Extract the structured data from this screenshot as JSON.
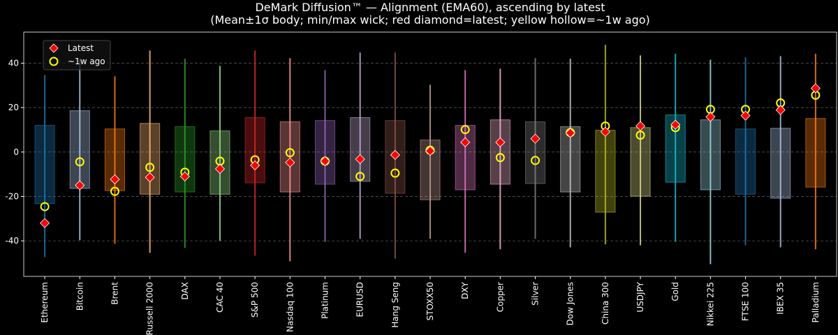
{
  "chart_data": {
    "type": "range-box",
    "title": "DeMark Diffusion™ — Alignment (EMA60), ascending by latest",
    "subtitle": "(Mean±1σ body; min/max wick; red diamond=latest; yellow hollow=~1w ago)",
    "categories": [
      "Ethereum",
      "Bitcoin",
      "Brent",
      "Russell 2000",
      "DAX",
      "CAC 40",
      "S&P 500",
      "Nasdaq 100",
      "Platinum",
      "EURUSD",
      "Hang Seng",
      "STOXX50",
      "DXY",
      "Copper",
      "Silver",
      "Dow Jones",
      "China 300",
      "USDJPY",
      "Gold",
      "Nikkei 225",
      "FTSE 100",
      "IBEX 35",
      "Palladium"
    ],
    "colors": [
      "#1f77b4",
      "#aec7e8",
      "#ff7f0e",
      "#ffbb78",
      "#2ca02c",
      "#98df8a",
      "#d62728",
      "#ff9896",
      "#9467bd",
      "#c5b0d5",
      "#8c564b",
      "#c49c94",
      "#e377c2",
      "#f7b6d2",
      "#7f7f7f",
      "#c7c7c7",
      "#bcbd22",
      "#dbdb8d",
      "#17becf",
      "#9edae5",
      "#1f77b4",
      "#aec7e8",
      "#ff7f0e"
    ],
    "body_low": [
      -23.3,
      -16.4,
      -17.4,
      -19,
      -18,
      -19,
      -13.9,
      -18,
      -14.5,
      -13.2,
      -18.6,
      -21.5,
      -17,
      -14.5,
      -14.2,
      -18,
      -27.1,
      -19.9,
      -13.6,
      -17,
      -19,
      -20.8,
      -15.8
    ],
    "body_high": [
      12,
      18.6,
      10.4,
      12.9,
      11.4,
      9.5,
      15.5,
      13.6,
      14.2,
      15.5,
      14.2,
      5.4,
      12,
      14.5,
      13.6,
      11.4,
      9.8,
      11,
      16.7,
      14.5,
      10.4,
      10.7,
      15.1
    ],
    "wick_min": [
      -47.3,
      -39.7,
      -41.3,
      -45.4,
      -43.2,
      -40,
      -46.7,
      -49.2,
      -40.4,
      -39.1,
      -48,
      -39.1,
      -45.4,
      -43.8,
      -39.1,
      -42.9,
      -41.6,
      -42,
      -40.4,
      -50.5,
      -42,
      -42.9,
      -43.8
    ],
    "wick_max": [
      34.7,
      42,
      34.1,
      45.7,
      42,
      38.8,
      45.7,
      42.3,
      36.9,
      44.8,
      44.8,
      30.3,
      36.9,
      37.5,
      42.3,
      42,
      48.3,
      43.5,
      44.2,
      41.6,
      42.6,
      43.2,
      44.2
    ],
    "series": [
      {
        "name": "Latest",
        "color": "#ff0000",
        "values": [
          -32,
          -15,
          -12.3,
          -11.4,
          -11,
          -7.6,
          -6,
          -4.7,
          -4.1,
          -3.2,
          -1.3,
          0.5,
          4.4,
          4.4,
          6,
          8.6,
          9.1,
          11.7,
          12.3,
          15.8,
          16.4,
          18.9,
          28.7
        ]
      },
      {
        "name": "~1w ago",
        "color": "#ffff00",
        "values": [
          -24.6,
          -4.4,
          -17.7,
          -6.9,
          -9.1,
          -4.1,
          -3.5,
          -0.3,
          -4.1,
          -11,
          -9.5,
          0.8,
          10.1,
          -2.5,
          -3.8,
          8.8,
          11.7,
          7.6,
          11,
          19.2,
          19.2,
          22.1,
          25.6
        ]
      }
    ],
    "ylim": [
      -56,
      54
    ],
    "yticks": [
      -40,
      -20,
      0,
      20,
      40
    ],
    "grid": true
  }
}
